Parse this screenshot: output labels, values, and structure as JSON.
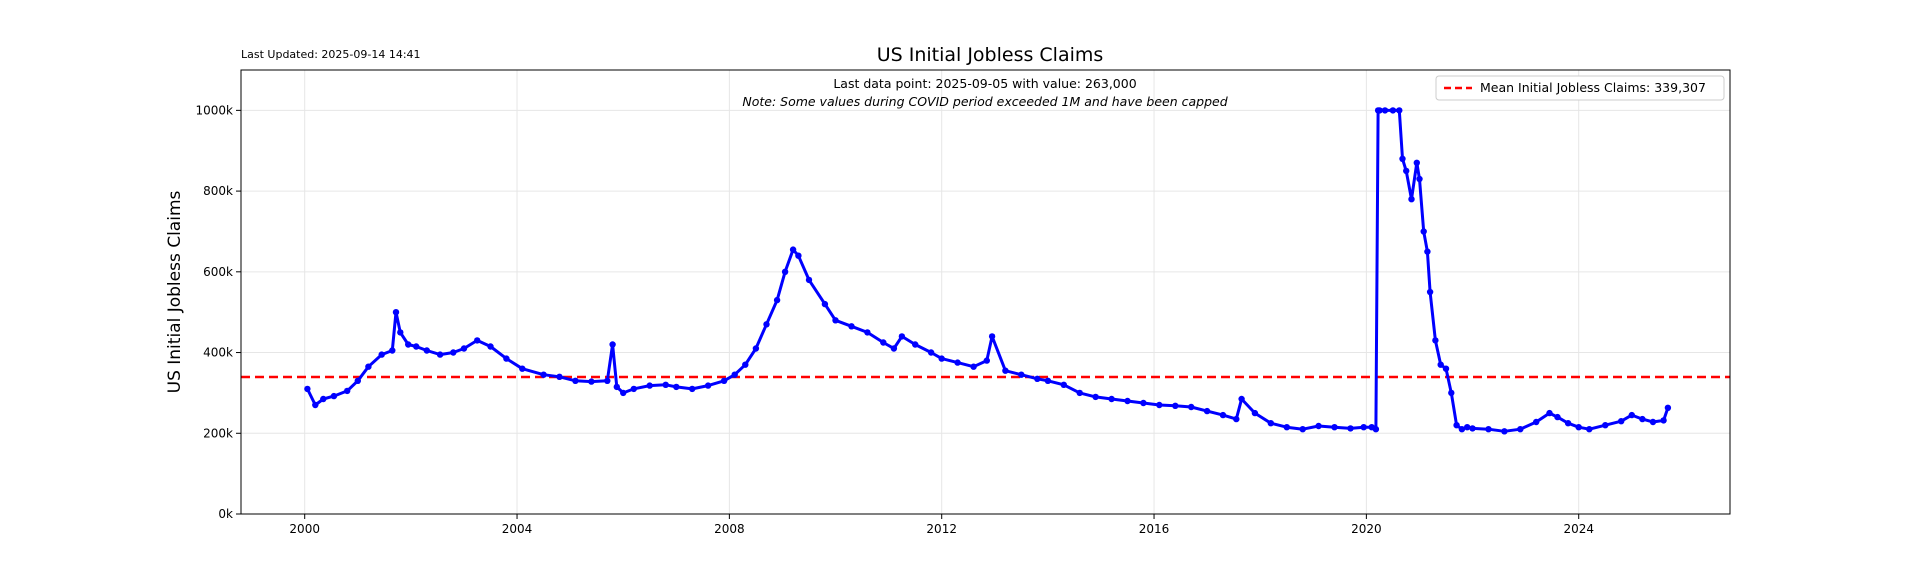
{
  "chart_data": {
    "type": "line",
    "title": "US Initial Jobless Claims",
    "ylabel": "US Initial Jobless Claims",
    "xlabel": "",
    "last_updated": "Last Updated: 2025-09-14 14:41",
    "annotation_main": "Last data point: 2025-09-05 with value: 263,000",
    "annotation_note": "Note: Some values during COVID period exceeded 1M and have been capped",
    "legend": [
      {
        "label": "Mean Initial Jobless Claims: 339,307",
        "color": "#ff0000",
        "style": "dashed"
      }
    ],
    "legend_position": "top-right",
    "xlim": [
      1998.8,
      2026.85
    ],
    "ylim": [
      0,
      1100000
    ],
    "xticks": [
      2000,
      2004,
      2008,
      2012,
      2016,
      2020,
      2024
    ],
    "xtick_labels": [
      "2000",
      "2004",
      "2008",
      "2012",
      "2016",
      "2020",
      "2024"
    ],
    "yticks": [
      0,
      200000,
      400000,
      600000,
      800000,
      1000000
    ],
    "ytick_labels": [
      "0k",
      "200k",
      "400k",
      "600k",
      "800k",
      "1000k"
    ],
    "mean": 339307,
    "grid": true,
    "series": [
      {
        "name": "US Initial Jobless Claims",
        "color": "#0000ff",
        "marker": "circle",
        "x": [
          2000.05,
          2000.2,
          2000.35,
          2000.55,
          2000.8,
          2001.0,
          2001.2,
          2001.45,
          2001.65,
          2001.72,
          2001.8,
          2001.95,
          2002.1,
          2002.3,
          2002.55,
          2002.8,
          2003.0,
          2003.25,
          2003.5,
          2003.8,
          2004.1,
          2004.5,
          2004.8,
          2005.1,
          2005.4,
          2005.7,
          2005.8,
          2005.88,
          2006.0,
          2006.2,
          2006.5,
          2006.8,
          2007.0,
          2007.3,
          2007.6,
          2007.9,
          2008.1,
          2008.3,
          2008.5,
          2008.7,
          2008.9,
          2009.05,
          2009.2,
          2009.3,
          2009.5,
          2009.8,
          2010.0,
          2010.3,
          2010.6,
          2010.9,
          2011.1,
          2011.25,
          2011.5,
          2011.8,
          2012.0,
          2012.3,
          2012.6,
          2012.85,
          2012.95,
          2013.2,
          2013.5,
          2013.8,
          2014.0,
          2014.3,
          2014.6,
          2014.9,
          2015.2,
          2015.5,
          2015.8,
          2016.1,
          2016.4,
          2016.7,
          2017.0,
          2017.3,
          2017.55,
          2017.65,
          2017.9,
          2018.2,
          2018.5,
          2018.8,
          2019.1,
          2019.4,
          2019.7,
          2019.95,
          2020.1,
          2020.18,
          2020.22,
          2020.25,
          2020.35,
          2020.5,
          2020.62,
          2020.68,
          2020.75,
          2020.85,
          2020.95,
          2021.0,
          2021.08,
          2021.15,
          2021.2,
          2021.3,
          2021.4,
          2021.5,
          2021.6,
          2021.7,
          2021.8,
          2021.9,
          2022.0,
          2022.3,
          2022.6,
          2022.9,
          2023.2,
          2023.45,
          2023.6,
          2023.8,
          2024.0,
          2024.2,
          2024.5,
          2024.8,
          2025.0,
          2025.2,
          2025.4,
          2025.6,
          2025.68
        ],
        "values": [
          310000,
          270000,
          285000,
          292000,
          305000,
          330000,
          365000,
          395000,
          405000,
          500000,
          450000,
          420000,
          415000,
          405000,
          395000,
          400000,
          410000,
          430000,
          415000,
          385000,
          360000,
          345000,
          340000,
          330000,
          328000,
          330000,
          420000,
          315000,
          300000,
          310000,
          318000,
          320000,
          315000,
          310000,
          318000,
          330000,
          345000,
          370000,
          410000,
          470000,
          530000,
          600000,
          655000,
          640000,
          580000,
          520000,
          480000,
          465000,
          450000,
          425000,
          410000,
          440000,
          420000,
          400000,
          385000,
          375000,
          365000,
          380000,
          440000,
          355000,
          345000,
          335000,
          330000,
          320000,
          300000,
          290000,
          285000,
          280000,
          275000,
          270000,
          268000,
          265000,
          255000,
          245000,
          235000,
          285000,
          250000,
          225000,
          215000,
          210000,
          218000,
          215000,
          212000,
          215000,
          215000,
          210000,
          1000000,
          1000000,
          1000000,
          1000000,
          1000000,
          880000,
          850000,
          780000,
          870000,
          830000,
          700000,
          650000,
          550000,
          430000,
          370000,
          360000,
          300000,
          220000,
          210000,
          215000,
          212000,
          210000,
          205000,
          210000,
          228000,
          250000,
          240000,
          225000,
          215000,
          210000,
          220000,
          230000,
          245000,
          235000,
          228000,
          232000,
          263000
        ]
      }
    ]
  }
}
